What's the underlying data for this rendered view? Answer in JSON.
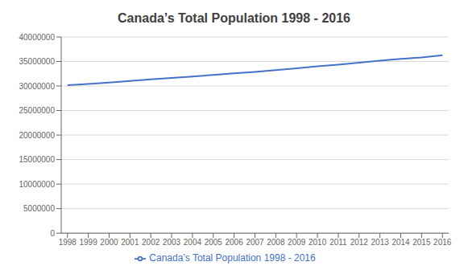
{
  "chart_data": {
    "type": "line",
    "title": "Canada’s Total Population 1998 - 2016",
    "x": [
      1998,
      1999,
      2000,
      2001,
      2002,
      2003,
      2004,
      2005,
      2006,
      2007,
      2008,
      2009,
      2010,
      2011,
      2012,
      2013,
      2014,
      2015,
      2016
    ],
    "series": [
      {
        "name": "Canada’s Total Population 1998 - 2016",
        "color": "#4472C4",
        "values": [
          30157604,
          30401286,
          30689035,
          31020596,
          31360079,
          31639734,
          31940379,
          32245209,
          32570505,
          32887928,
          33245773,
          33628571,
          34005274,
          34342780,
          34750545,
          35152370,
          35535348,
          35832513,
          36264604
        ]
      }
    ],
    "xlim": [
      1997.7,
      2016.3
    ],
    "xticks": [
      1998,
      1999,
      2000,
      2001,
      2002,
      2003,
      2004,
      2005,
      2006,
      2007,
      2008,
      2009,
      2010,
      2011,
      2012,
      2013,
      2014,
      2015,
      2016
    ],
    "ylim": [
      0,
      40000000
    ],
    "yticks": [
      0,
      5000000,
      10000000,
      15000000,
      20000000,
      25000000,
      30000000,
      35000000,
      40000000
    ],
    "grid": "y",
    "legend": "bottom"
  }
}
